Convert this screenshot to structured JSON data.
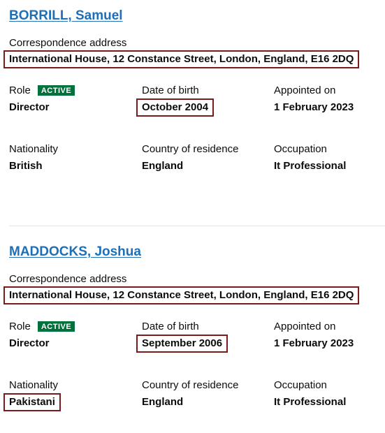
{
  "labels": {
    "correspondence_address": "Correspondence address",
    "role": "Role",
    "date_of_birth": "Date of birth",
    "appointed_on": "Appointed on",
    "nationality": "Nationality",
    "country_of_residence": "Country of residence",
    "occupation": "Occupation"
  },
  "officers": [
    {
      "name": "BORRILL, Samuel",
      "address": "International House, 12 Constance Street, London, England, E16 2DQ",
      "status_badge": "ACTIVE",
      "role": "Director",
      "date_of_birth": "October 2004",
      "appointed_on": "1 February 2023",
      "nationality": "British",
      "country_of_residence": "England",
      "occupation": "It Professional"
    },
    {
      "name": "MADDOCKS, Joshua",
      "address": "International House, 12 Constance Street, London, England, E16 2DQ",
      "status_badge": "ACTIVE",
      "role": "Director",
      "date_of_birth": "September 2006",
      "appointed_on": "1 February 2023",
      "nationality": "Pakistani",
      "country_of_residence": "England",
      "occupation": "It Professional"
    }
  ],
  "colors": {
    "link": "#1d70b8",
    "badge": "#00703c",
    "highlight_border": "#7a1a1a",
    "text": "#0b0c0c"
  }
}
